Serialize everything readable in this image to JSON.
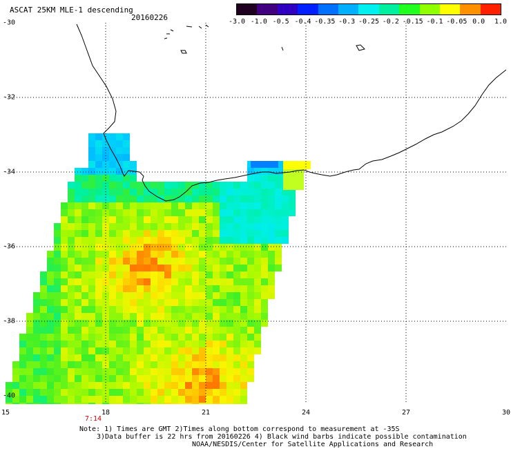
{
  "header": {
    "title": "ASCAT 25KM MLE-1 descending",
    "date": "20160226"
  },
  "colorbar": {
    "labels": [
      "-3.0",
      "-1.0",
      "-0.5",
      "-0.4",
      "-0.35",
      "-0.3",
      "-0.25",
      "-0.2",
      "-0.15",
      "-0.1",
      "-0.05",
      "0.0",
      "1.0"
    ],
    "colors": [
      "#200020",
      "#400080",
      "#3000c0",
      "#0020ff",
      "#0070ff",
      "#00b0ff",
      "#00f0f0",
      "#00f0a0",
      "#20ff20",
      "#90ff00",
      "#ffff00",
      "#ff9000",
      "#ff2000"
    ]
  },
  "axes": {
    "lat_labels": [
      "-30",
      "-32",
      "-34",
      "-36",
      "-38",
      "-40"
    ],
    "lon_labels": [
      "15",
      "18",
      "21",
      "24",
      "27",
      "30"
    ],
    "lon_range": [
      15,
      30
    ],
    "lat_range": [
      -30,
      -40
    ]
  },
  "time_label": "7:14",
  "notes": {
    "line1": "Note: 1) Times are GMT 2)Times along bottom correspond to measurement at -35S",
    "line2": "3)Data buffer is 22 hrs from 20160226 4) Black wind barbs indicate possible contamination",
    "line3": "NOAA/NESDIS/Center for Satellite Applications and Research"
  }
}
